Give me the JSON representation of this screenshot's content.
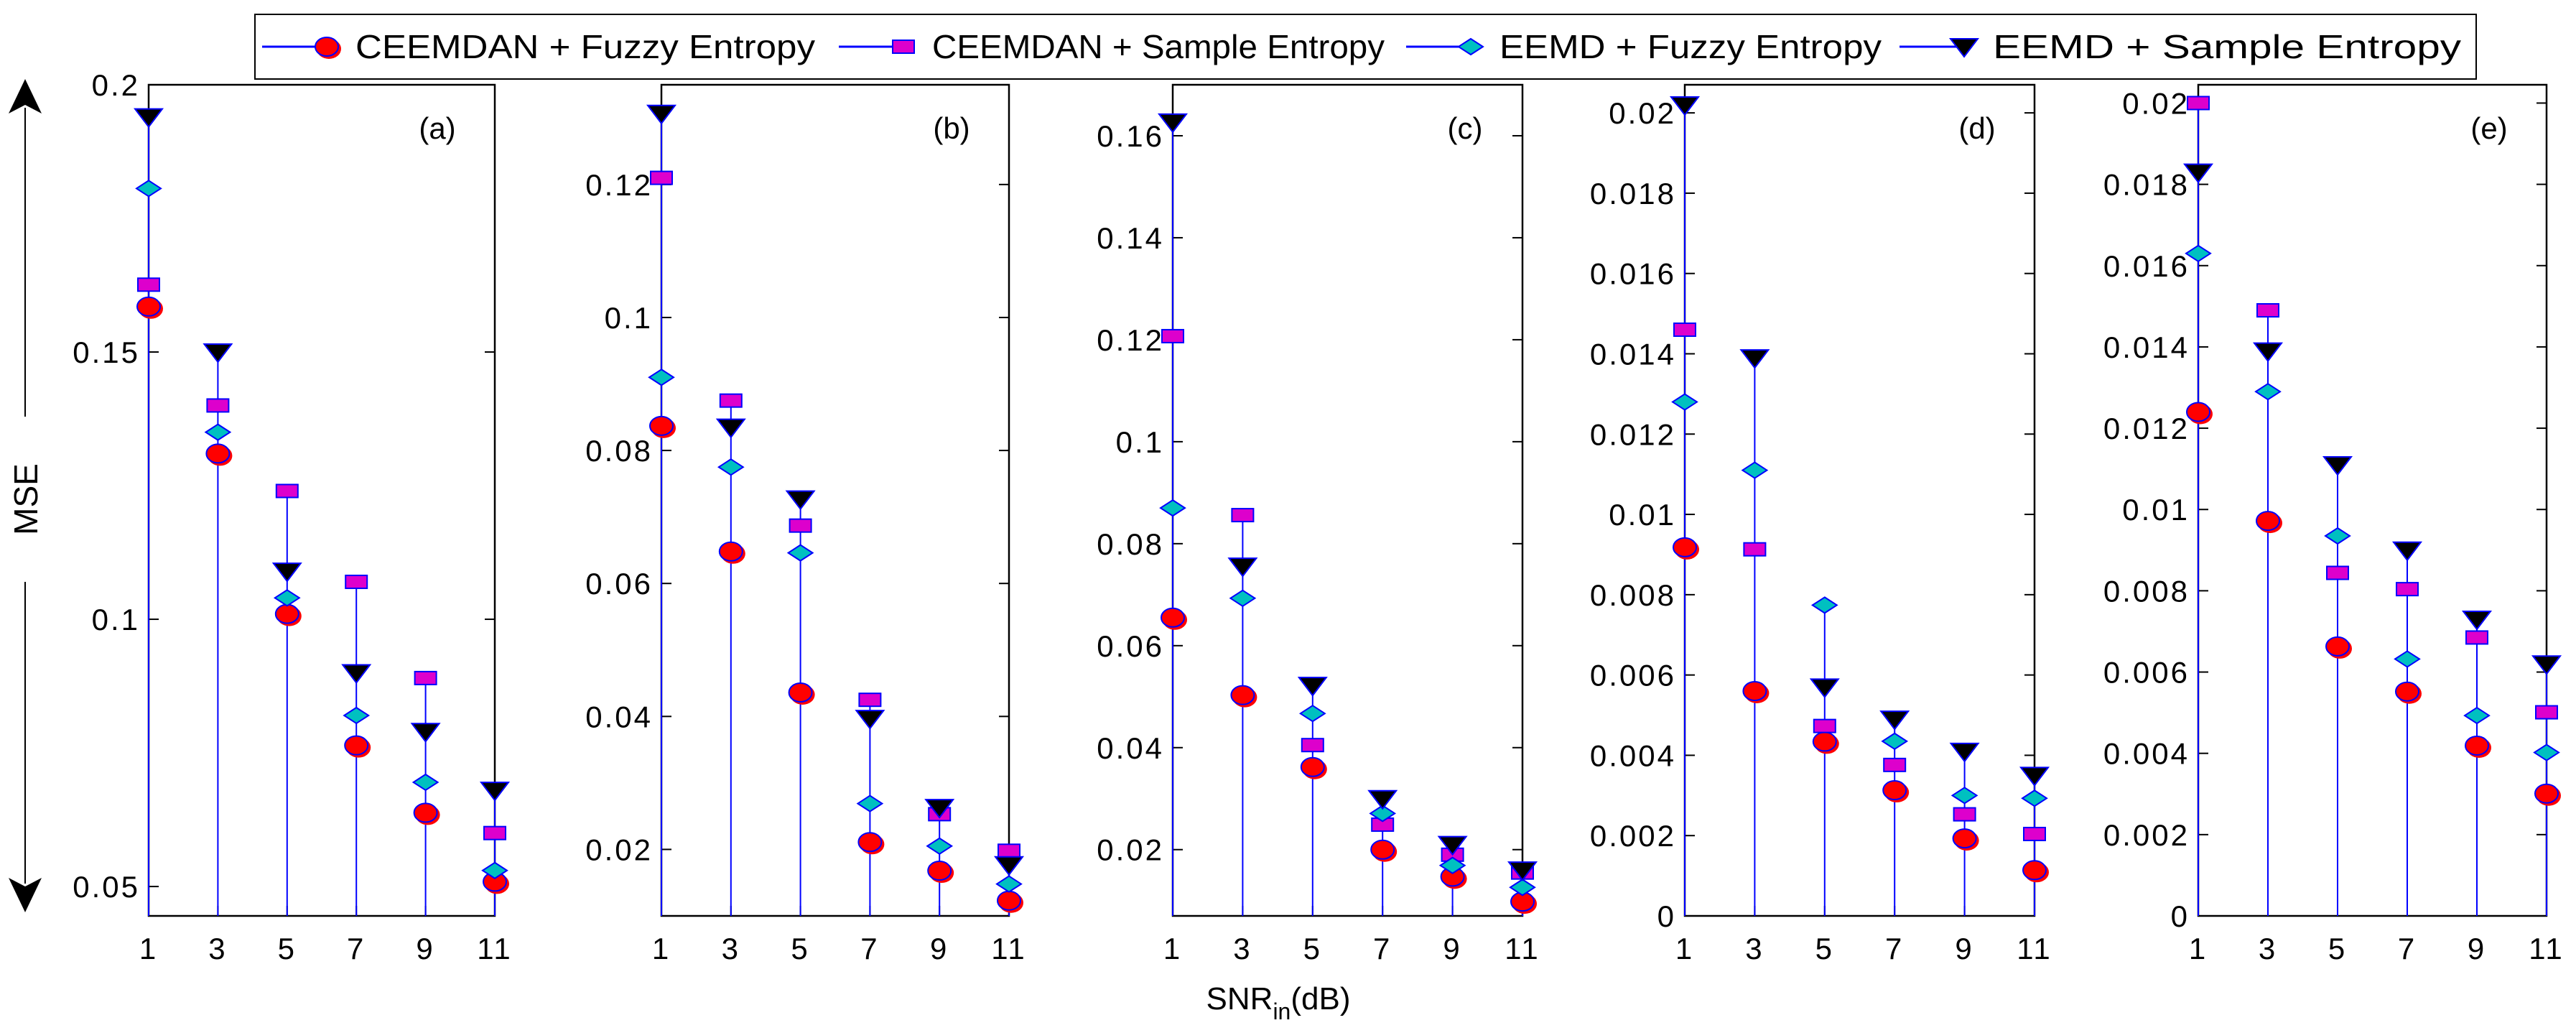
{
  "chart_data": {
    "type": "scatter",
    "ylabel": "MSE",
    "xlabel": {
      "main": "SNR",
      "sub": "in",
      "unit": "(dB)"
    },
    "legend": {
      "placement": "top",
      "entries": [
        {
          "name": "CEEMDAN + Fuzzy Entropy",
          "marker": "circle",
          "color": "#ff0000"
        },
        {
          "name": "CEEMDAN + Sample Entropy",
          "marker": "square",
          "color": "#dd00cc"
        },
        {
          "name": "EEMD + Fuzzy Entropy",
          "marker": "diamond",
          "color": "#00c0c0"
        },
        {
          "name": "EEMD + Sample Entropy",
          "marker": "triangle-down",
          "color": "#000000"
        }
      ]
    },
    "stem_color": "#0000ff",
    "x": [
      1,
      3,
      5,
      7,
      9,
      11
    ],
    "xticks": [
      "1",
      "3",
      "5",
      "7",
      "9",
      "11"
    ],
    "panels": [
      {
        "label": "(a)",
        "ylim": [
          0.0445,
          0.2
        ],
        "yticks": [
          0.05,
          0.1,
          0.15,
          0.2
        ],
        "ytick_labels": [
          "0.05",
          "0.1",
          "0.15",
          "0.2"
        ],
        "series": [
          [
            0.1585,
            0.131,
            0.101,
            0.0764,
            0.0638,
            0.0509
          ],
          [
            0.1626,
            0.14,
            0.124,
            0.107,
            0.089,
            0.06
          ],
          [
            0.1806,
            0.135,
            0.104,
            0.082,
            0.0695,
            0.053
          ],
          [
            0.194,
            0.15,
            0.109,
            0.09,
            0.079,
            0.068
          ]
        ]
      },
      {
        "label": "(b)",
        "ylim": [
          0.01,
          0.135
        ],
        "yticks": [
          0.02,
          0.04,
          0.06,
          0.08,
          0.1,
          0.12
        ],
        "ytick_labels": [
          "0.02",
          "0.04",
          "0.06",
          "0.08",
          "0.1",
          "0.12"
        ],
        "series": [
          [
            0.0837,
            0.0648,
            0.0436,
            0.0211,
            0.0168,
            0.0123
          ],
          [
            0.121,
            0.0875,
            0.0687,
            0.0425,
            0.0253,
            0.0198
          ],
          [
            0.091,
            0.0775,
            0.0646,
            0.0269,
            0.0205,
            0.0148
          ],
          [
            0.1307,
            0.0835,
            0.0727,
            0.0397,
            0.0263,
            0.0177
          ]
        ]
      },
      {
        "label": "(c)",
        "ylim": [
          0.007,
          0.17
        ],
        "yticks": [
          0.02,
          0.04,
          0.06,
          0.08,
          0.1,
          0.12,
          0.14,
          0.16
        ],
        "ytick_labels": [
          "0.02",
          "0.04",
          "0.06",
          "0.08",
          "0.1",
          "0.12",
          "0.14",
          "0.16"
        ],
        "series": [
          [
            0.0655,
            0.0503,
            0.0362,
            0.02,
            0.0147,
            0.0098
          ],
          [
            0.1207,
            0.0856,
            0.0405,
            0.0249,
            0.019,
            0.0155
          ],
          [
            0.087,
            0.0693,
            0.0467,
            0.0271,
            0.0169,
            0.0126
          ],
          [
            0.1627,
            0.0756,
            0.0522,
            0.03,
            0.021,
            0.016
          ]
        ]
      },
      {
        "label": "(d)",
        "ylim": [
          0,
          0.0207
        ],
        "yticks": [
          0,
          0.002,
          0.004,
          0.006,
          0.008,
          0.01,
          0.012,
          0.014,
          0.016,
          0.018,
          0.02
        ],
        "ytick_labels": [
          "0",
          "0.002",
          "0.004",
          "0.006",
          "0.008",
          "0.01",
          "0.012",
          "0.014",
          "0.016",
          "0.018",
          "0.02"
        ],
        "series": [
          [
            0.00918,
            0.0056,
            0.00434,
            0.00313,
            0.00193,
            0.00114
          ],
          [
            0.0146,
            0.00913,
            0.00473,
            0.00376,
            0.00253,
            0.00204
          ],
          [
            0.0128,
            0.0111,
            0.00774,
            0.00435,
            0.003,
            0.00293
          ],
          [
            0.0202,
            0.0139,
            0.0057,
            0.0049,
            0.0041,
            0.0035
          ]
        ]
      },
      {
        "label": "(e)",
        "ylim": [
          0,
          0.02045
        ],
        "yticks": [
          0,
          0.002,
          0.004,
          0.006,
          0.008,
          0.01,
          0.012,
          0.014,
          0.016,
          0.018,
          0.02
        ],
        "ytick_labels": [
          "0",
          "0.002",
          "0.004",
          "0.006",
          "0.008",
          "0.01",
          "0.012",
          "0.014",
          "0.016",
          "0.018",
          "0.02"
        ],
        "series": [
          [
            0.0124,
            0.00972,
            0.00663,
            0.00552,
            0.00419,
            0.00301
          ],
          [
            0.02,
            0.0149,
            0.00844,
            0.00804,
            0.00685,
            0.00501
          ],
          [
            0.0163,
            0.0129,
            0.00935,
            0.00632,
            0.00493,
            0.00402
          ],
          [
            0.0183,
            0.0139,
            0.0111,
            0.009,
            0.0073,
            0.0062
          ]
        ]
      }
    ]
  }
}
